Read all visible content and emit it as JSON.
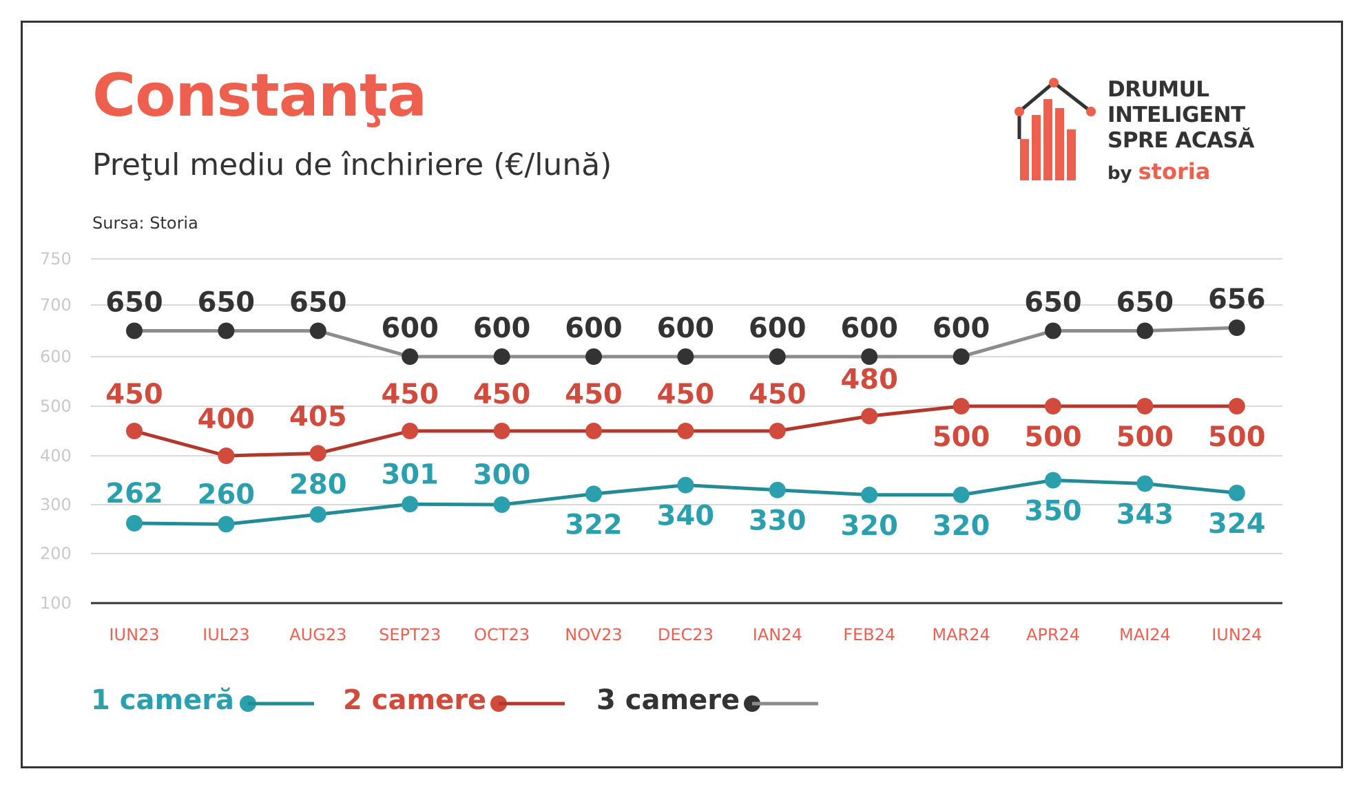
{
  "title": "Constanţa",
  "subtitle": "Preţul mediu de închiriere (€/lună)",
  "source": "Sursa: Storia",
  "logo": {
    "line1": "DRUMUL",
    "line2": "INTELIGENT",
    "line3": "SPRE ACASĂ",
    "by": "by",
    "brand": "storia"
  },
  "chart_data": {
    "type": "line",
    "categories": [
      "IUN23",
      "IUL23",
      "AUG23",
      "SEPT23",
      "OCT23",
      "NOV23",
      "DEC23",
      "IAN24",
      "FEB24",
      "MAR24",
      "APR24",
      "MAI24",
      "IUN24"
    ],
    "y_ticks": [
      750,
      700,
      600,
      500,
      400,
      300,
      200,
      100
    ],
    "ylim": [
      100,
      750
    ],
    "grid": true,
    "legend_position": "bottom-left",
    "series": [
      {
        "name": "1 cameră",
        "color": "#2a9fae",
        "line_color": "#238b95",
        "values": [
          262,
          260,
          280,
          301,
          300,
          322,
          340,
          330,
          320,
          320,
          350,
          343,
          324
        ]
      },
      {
        "name": "2 camere",
        "color": "#d14a3c",
        "line_color": "#b3382c",
        "values": [
          450,
          400,
          405,
          450,
          450,
          450,
          450,
          450,
          480,
          500,
          500,
          500,
          500
        ]
      },
      {
        "name": "3 camere",
        "color": "#333333",
        "line_color": "#8c8c8c",
        "values": [
          650,
          650,
          650,
          600,
          600,
          600,
          600,
          600,
          600,
          600,
          650,
          650,
          656
        ]
      }
    ]
  }
}
